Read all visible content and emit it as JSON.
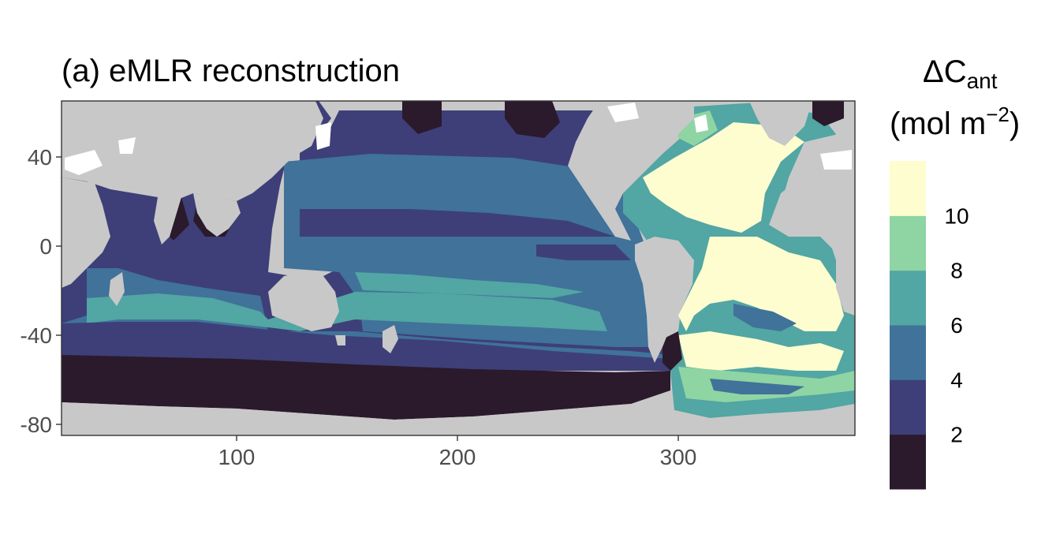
{
  "title": "(a) eMLR reconstruction",
  "legend": {
    "title_main": "ΔC",
    "title_sub": "ant",
    "unit_open": "(mol m",
    "unit_sup": "−2",
    "unit_close": ")",
    "breaks": [
      "2",
      "4",
      "6",
      "8",
      "10"
    ],
    "colors": [
      "#2a1a2b",
      "#3e3f78",
      "#40729a",
      "#52a6a3",
      "#8fd4a3",
      "#fdfdcf"
    ]
  },
  "axes": {
    "x_ticks": [
      "100",
      "200",
      "300"
    ],
    "y_ticks": [
      "40",
      "0",
      "-40",
      "-80"
    ]
  },
  "colors": {
    "land": "#c8c8c8",
    "no_data": "#ffffff",
    "panel_border": "#333333"
  },
  "chart_data": {
    "type": "heatmap",
    "title": "(a) eMLR reconstruction",
    "xlabel": "",
    "ylabel": "",
    "xlim": [
      20,
      380
    ],
    "ylim": [
      -85,
      65
    ],
    "x_ticks": [
      100,
      200,
      300
    ],
    "y_ticks": [
      40,
      0,
      -40,
      -80
    ],
    "legend_title": "ΔC_ant (mol m^-2)",
    "legend_breaks": [
      2,
      4,
      6,
      8,
      10
    ],
    "legend_placement": "right",
    "grid": false
  }
}
